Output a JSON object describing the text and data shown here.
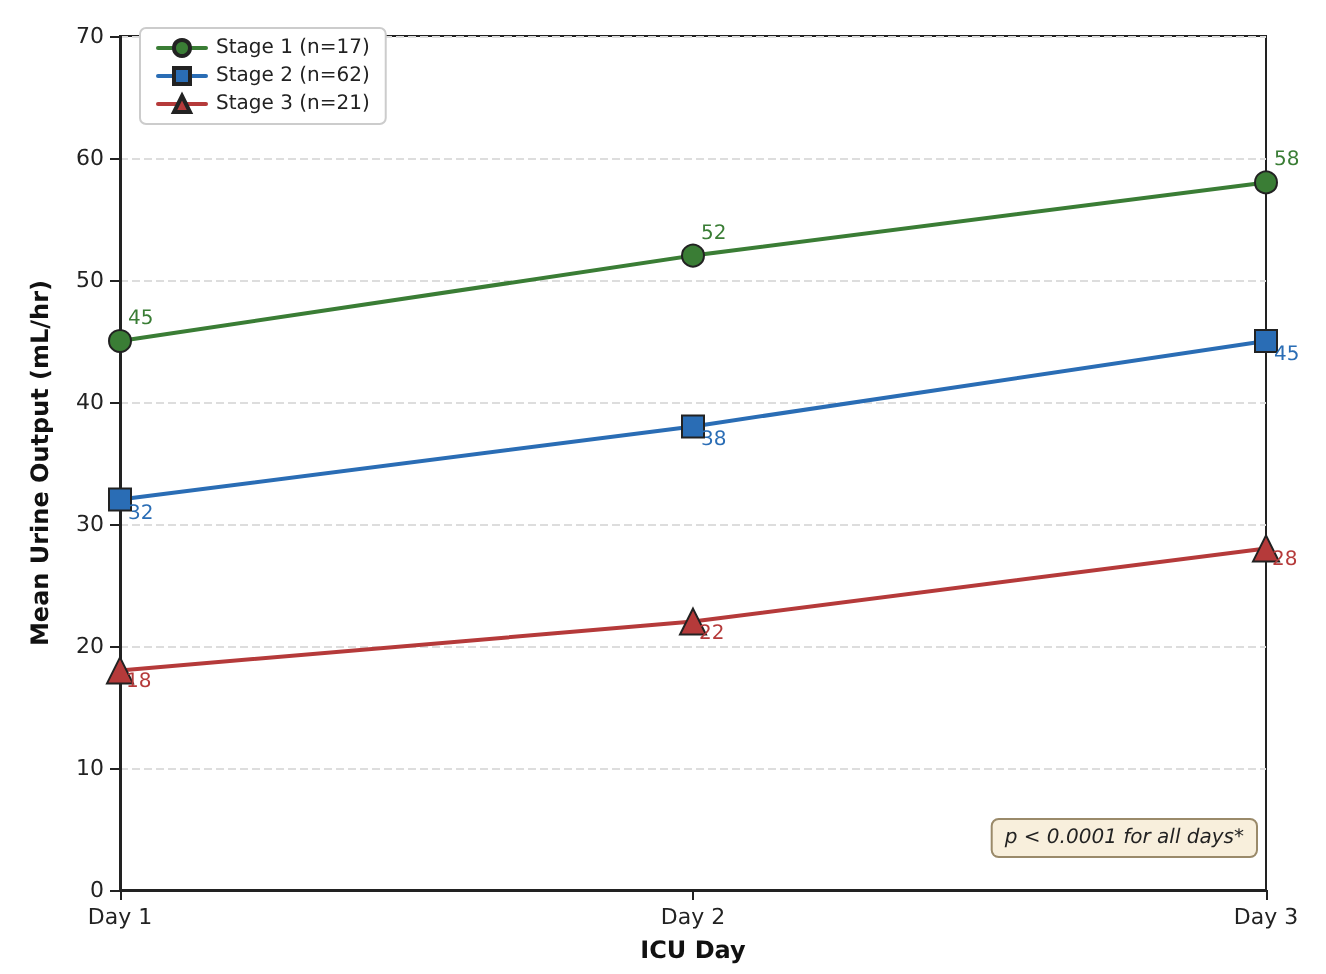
{
  "chart_data": {
    "type": "line",
    "xlabel": "ICU Day",
    "ylabel": "Mean Urine Output (mL/hr)",
    "categories": [
      "Day 1",
      "Day 2",
      "Day 3"
    ],
    "series": [
      {
        "name": "Stage 1 (n=17)",
        "color": "#3a7d35",
        "marker": "circle",
        "values": [
          45,
          52,
          58
        ]
      },
      {
        "name": "Stage 2 (n=62)",
        "color": "#2a6db5",
        "marker": "square",
        "values": [
          32,
          38,
          45
        ]
      },
      {
        "name": "Stage 3 (n=21)",
        "color": "#b53a3a",
        "marker": "triangle",
        "values": [
          18,
          22,
          28
        ]
      }
    ],
    "ylim": [
      0,
      70
    ],
    "yticks": [
      0,
      10,
      20,
      30,
      40,
      50,
      60,
      70
    ],
    "grid": "y",
    "legend": "top left",
    "data_labels": true,
    "line_style": "solid",
    "annotations": [
      "p < 0.0001 for all days*"
    ]
  }
}
